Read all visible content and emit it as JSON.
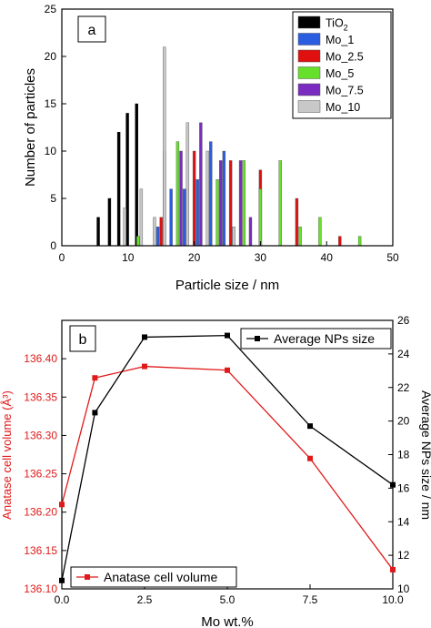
{
  "chart_data": [
    {
      "type": "bar",
      "panel_label": "a",
      "xlabel": "Particle size / nm",
      "ylabel": "Number of particles",
      "xlim": [
        0,
        50
      ],
      "ylim": [
        0,
        25
      ],
      "xticks": [
        0,
        10,
        20,
        30,
        40,
        50
      ],
      "yticks": [
        0,
        5,
        10,
        15,
        20,
        25
      ],
      "legend_position": "top-right",
      "series": [
        {
          "name": "TiO",
          "name_sub": "2",
          "color": "#000000",
          "x": [
            5.5,
            7.2,
            8.6,
            9.9,
            11.3
          ],
          "values": [
            3,
            5,
            12,
            14,
            15
          ]
        },
        {
          "name": "Mo_1",
          "color": "#2b5de0",
          "x": [
            14.5,
            16.5,
            18.5,
            20.5,
            22.5,
            24.5
          ],
          "values": [
            2,
            6,
            6,
            7,
            11,
            10
          ]
        },
        {
          "name": "Mo_2.5",
          "color": "#e01010",
          "x": [
            15.0,
            20.0,
            25.5,
            30.0,
            35.5,
            42.0
          ],
          "values": [
            3,
            10,
            9,
            8,
            5,
            1
          ]
        },
        {
          "name": "Mo_5",
          "color": "#66e02a",
          "x": [
            11.5,
            17.5,
            23.5,
            27.5,
            30.0,
            33.0,
            36.0,
            39.0,
            45.0
          ],
          "values": [
            1,
            11,
            7,
            9,
            6,
            9,
            2,
            3,
            1
          ]
        },
        {
          "name": "Mo_7.5",
          "color": "#7a2cc0",
          "x": [
            15.5,
            18.0,
            21.0,
            24.0,
            27.0,
            28.5
          ],
          "values": [
            10,
            10,
            13,
            9,
            9,
            3
          ]
        },
        {
          "name": "Mo_10",
          "color": "#c8c8c8",
          "x": [
            9.5,
            12.0,
            14.0,
            15.5,
            19.0,
            22.0,
            26.0
          ],
          "values": [
            4,
            6,
            3,
            21,
            13,
            10,
            2
          ]
        }
      ]
    },
    {
      "type": "line",
      "panel_label": "b",
      "xlabel": "Mo wt.%",
      "ylabel_left": "Anatase cell volume (Å³)",
      "ylabel_right": "Average NPs size / nm",
      "x": [
        0.0,
        1.0,
        2.5,
        5.0,
        7.5,
        10.0
      ],
      "xlim": [
        0,
        10
      ],
      "xticks": [
        "0.0",
        "2.5",
        "5.0",
        "7.5",
        "10.0"
      ],
      "ylim_left": [
        136.1,
        136.45
      ],
      "yticks_left": [
        "136.10",
        "136.15",
        "136.20",
        "136.25",
        "136.30",
        "136.35",
        "136.40"
      ],
      "ylim_right": [
        10,
        26
      ],
      "yticks_right": [
        "10",
        "12",
        "14",
        "16",
        "18",
        "20",
        "22",
        "24",
        "26"
      ],
      "series": [
        {
          "name": "Anatase cell volume",
          "color": "#e01a1a",
          "axis": "left",
          "values": [
            136.21,
            136.375,
            136.39,
            136.385,
            136.27,
            136.125
          ]
        },
        {
          "name": "Average NPs size",
          "color": "#000000",
          "axis": "right",
          "values": [
            10.5,
            20.5,
            25.0,
            25.1,
            19.7,
            16.2
          ]
        }
      ],
      "legends": [
        {
          "series": "Average NPs size",
          "position": "top-right"
        },
        {
          "series": "Anatase cell volume",
          "position": "bottom-left"
        }
      ]
    }
  ]
}
